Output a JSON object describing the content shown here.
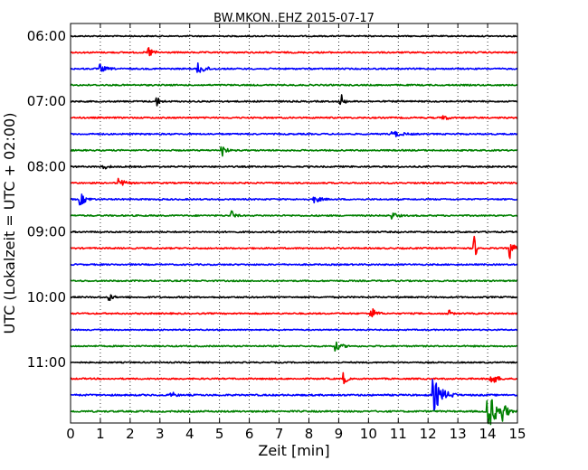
{
  "chart_data": {
    "type": "line",
    "title": "BW.MKON..EHZ 2015-07-17",
    "xlabel": "Zeit  [min]",
    "ylabel": "UTC (Lokalzeit = UTC + 02:00)",
    "xlim": [
      0,
      15
    ],
    "x_ticks": [
      "0",
      "1",
      "2",
      "3",
      "4",
      "5",
      "6",
      "7",
      "8",
      "9",
      "10",
      "11",
      "12",
      "13",
      "14",
      "15"
    ],
    "y_ticks": [
      "06:00",
      "07:00",
      "08:00",
      "09:00",
      "10:00",
      "11:00"
    ],
    "grid": "vertical-dotted",
    "trace_colors": [
      "#000000",
      "#ff0000",
      "#0000ff",
      "#008000"
    ],
    "traces": [
      {
        "start": "06:00",
        "color": "#000000",
        "amplitude": 0.3,
        "events": []
      },
      {
        "start": "06:15",
        "color": "#ff0000",
        "amplitude": 0.35,
        "events": [
          {
            "t": 2.6,
            "amp": 1.2,
            "dur": 0.4
          }
        ]
      },
      {
        "start": "06:30",
        "color": "#0000ff",
        "amplitude": 0.35,
        "events": [
          {
            "t": 1.0,
            "amp": 0.7,
            "dur": 0.5
          },
          {
            "t": 4.3,
            "amp": 1.0,
            "dur": 0.6
          }
        ]
      },
      {
        "start": "06:45",
        "color": "#008000",
        "amplitude": 0.35,
        "events": []
      },
      {
        "start": "07:00",
        "color": "#000000",
        "amplitude": 0.35,
        "events": [
          {
            "t": 2.9,
            "amp": 0.8,
            "dur": 0.3
          },
          {
            "t": 9.1,
            "amp": 1.3,
            "dur": 0.2
          }
        ]
      },
      {
        "start": "07:15",
        "color": "#ff0000",
        "amplitude": 0.35,
        "events": [
          {
            "t": 12.5,
            "amp": 0.6,
            "dur": 0.4
          }
        ]
      },
      {
        "start": "07:30",
        "color": "#0000ff",
        "amplitude": 0.35,
        "events": [
          {
            "t": 10.8,
            "amp": 0.6,
            "dur": 0.8
          }
        ]
      },
      {
        "start": "07:45",
        "color": "#008000",
        "amplitude": 0.35,
        "events": [
          {
            "t": 5.1,
            "amp": 1.1,
            "dur": 0.3
          }
        ]
      },
      {
        "start": "08:00",
        "color": "#000000",
        "amplitude": 0.35,
        "events": [
          {
            "t": 1.1,
            "amp": 0.5,
            "dur": 0.4
          }
        ]
      },
      {
        "start": "08:15",
        "color": "#ff0000",
        "amplitude": 0.35,
        "events": [
          {
            "t": 1.6,
            "amp": 0.9,
            "dur": 0.5
          }
        ]
      },
      {
        "start": "08:30",
        "color": "#0000ff",
        "amplitude": 0.35,
        "events": [
          {
            "t": 0.35,
            "amp": 1.0,
            "dur": 0.5
          },
          {
            "t": 8.2,
            "amp": 0.6,
            "dur": 0.5
          }
        ]
      },
      {
        "start": "08:45",
        "color": "#008000",
        "amplitude": 0.35,
        "events": [
          {
            "t": 5.4,
            "amp": 0.9,
            "dur": 0.3
          },
          {
            "t": 10.8,
            "amp": 0.6,
            "dur": 0.4
          }
        ]
      },
      {
        "start": "09:00",
        "color": "#000000",
        "amplitude": 0.35,
        "events": []
      },
      {
        "start": "09:15",
        "color": "#ff0000",
        "amplitude": 0.35,
        "events": [
          {
            "t": 13.55,
            "amp": 2.2,
            "dur": 0.25
          },
          {
            "t": 14.75,
            "amp": 2.0,
            "dur": 0.3
          }
        ]
      },
      {
        "start": "09:30",
        "color": "#0000ff",
        "amplitude": 0.35,
        "events": []
      },
      {
        "start": "09:45",
        "color": "#008000",
        "amplitude": 0.35,
        "events": []
      },
      {
        "start": "10:00",
        "color": "#000000",
        "amplitude": 0.35,
        "events": [
          {
            "t": 1.3,
            "amp": 0.7,
            "dur": 0.3
          }
        ]
      },
      {
        "start": "10:15",
        "color": "#ff0000",
        "amplitude": 0.35,
        "events": [
          {
            "t": 10.1,
            "amp": 1.1,
            "dur": 0.4
          },
          {
            "t": 12.7,
            "amp": 0.7,
            "dur": 0.2
          }
        ]
      },
      {
        "start": "10:30",
        "color": "#0000ff",
        "amplitude": 0.3,
        "events": []
      },
      {
        "start": "10:45",
        "color": "#008000",
        "amplitude": 0.35,
        "events": [
          {
            "t": 8.9,
            "amp": 0.8,
            "dur": 0.5
          }
        ]
      },
      {
        "start": "11:00",
        "color": "#000000",
        "amplitude": 0.3,
        "events": []
      },
      {
        "start": "11:15",
        "color": "#ff0000",
        "amplitude": 0.35,
        "events": [
          {
            "t": 9.2,
            "amp": 1.2,
            "dur": 0.2
          },
          {
            "t": 14.1,
            "amp": 1.3,
            "dur": 0.5
          }
        ]
      },
      {
        "start": "11:30",
        "color": "#0000ff",
        "amplitude": 0.4,
        "events": [
          {
            "t": 3.4,
            "amp": 0.6,
            "dur": 0.3
          },
          {
            "t": 12.2,
            "amp": 2.8,
            "dur": 0.8
          }
        ]
      },
      {
        "start": "11:45",
        "color": "#008000",
        "amplitude": 0.4,
        "events": [
          {
            "t": 14.0,
            "amp": 4.0,
            "dur": 0.7
          },
          {
            "t": 14.5,
            "amp": 1.5,
            "dur": 0.4
          }
        ]
      }
    ]
  }
}
